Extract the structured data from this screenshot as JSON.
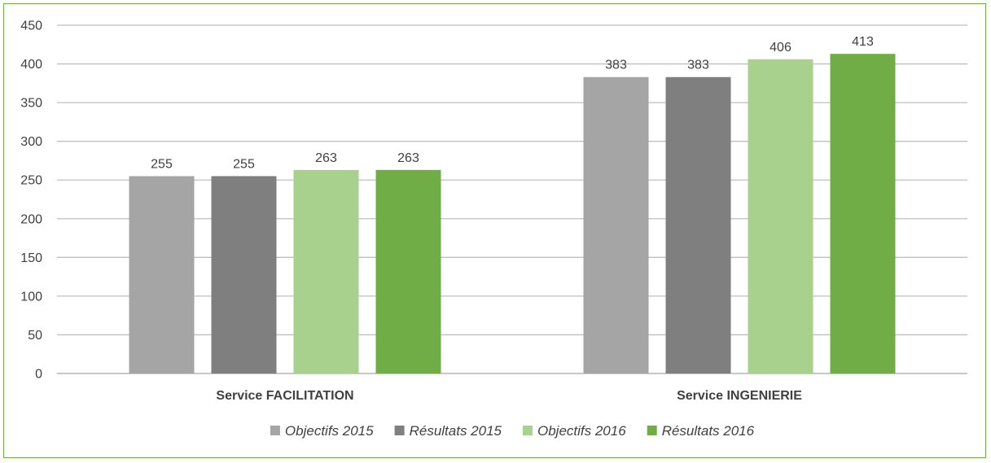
{
  "chart_data": {
    "type": "bar",
    "categories": [
      "Service FACILITATION",
      "Service INGENIERIE"
    ],
    "series": [
      {
        "name": "Objectifs 2015",
        "values": [
          255,
          383
        ],
        "color": "#a5a5a5"
      },
      {
        "name": "Résultats 2015",
        "values": [
          255,
          383
        ],
        "color": "#7f7f7f"
      },
      {
        "name": "Objectifs 2016",
        "values": [
          263,
          406
        ],
        "color": "#a9d18e"
      },
      {
        "name": "Résultats 2016",
        "values": [
          263,
          413
        ],
        "color": "#70ad47"
      }
    ],
    "title": "",
    "xlabel": "",
    "ylabel": "",
    "ylim": [
      0,
      450
    ],
    "yticks": [
      0,
      50,
      100,
      150,
      200,
      250,
      300,
      350,
      400,
      450
    ],
    "grid": true,
    "legend_position": "bottom",
    "data_labels": true,
    "frame_color": "#70ad47",
    "gridline_color": "#bfbfbf",
    "text_color": "#404040"
  }
}
